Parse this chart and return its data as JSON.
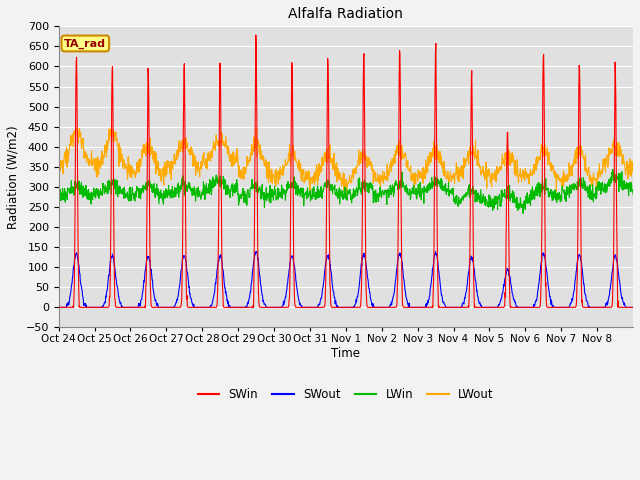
{
  "title": "Alfalfa Radiation",
  "ylabel": "Radiation (W/m2)",
  "xlabel": "Time",
  "ylim": [
    -50,
    700
  ],
  "x_tick_labels": [
    "Oct 24",
    "Oct 25",
    "Oct 26",
    "Oct 27",
    "Oct 28",
    "Oct 29",
    "Oct 30",
    "Oct 31",
    "Nov 1",
    "Nov 2",
    "Nov 3",
    "Nov 4",
    "Nov 5",
    "Nov 6",
    "Nov 7",
    "Nov 8"
  ],
  "n_days": 16,
  "colors": {
    "SWin": "#ff0000",
    "SWout": "#0000ff",
    "LWin": "#00bb00",
    "LWout": "#ffaa00"
  },
  "background_color": "#e0e0e0",
  "grid_color": "#ffffff",
  "fig_facecolor": "#f2f2f2",
  "legend_label_color": "#990000",
  "annotation_box": {
    "text": "TA_rad",
    "bg_color": "#ffff88",
    "border_color": "#cc8800"
  },
  "SWin_peaks": [
    630,
    608,
    605,
    610,
    615,
    665,
    610,
    620,
    635,
    640,
    643,
    590,
    440,
    640,
    625,
    610
  ],
  "pts_per_day": 96
}
